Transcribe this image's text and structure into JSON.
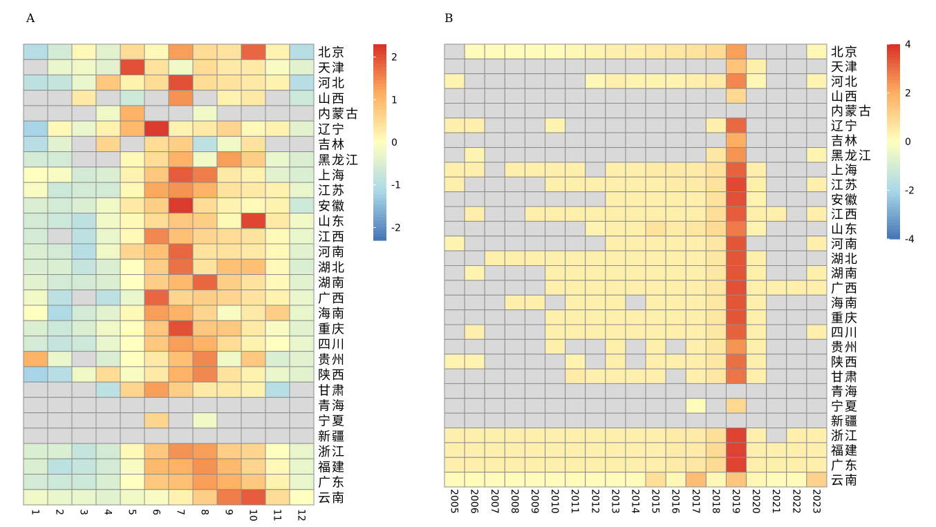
{
  "colors": {
    "na": "#d9d9d9",
    "scale_low": "#4575b4",
    "scale_mid": "#ffffbf",
    "scale_high": "#d73027",
    "grid": "#8c8c8c"
  },
  "chart_data": [
    {
      "type": "heatmap",
      "panel_label": "A",
      "title": "",
      "xlabel": "",
      "ylabel": "",
      "columns": [
        "1",
        "2",
        "3",
        "4",
        "5",
        "6",
        "7",
        "8",
        "9",
        "10",
        "11",
        "12"
      ],
      "rows": [
        "北京",
        "天津",
        "河北",
        "山西",
        "内蒙古",
        "辽宁",
        "吉林",
        "黑龙江",
        "上海",
        "江苏",
        "安徽",
        "山东",
        "江西",
        "河南",
        "湖北",
        "湖南",
        "广西",
        "海南",
        "重庆",
        "四川",
        "贵州",
        "陕西",
        "甘肃",
        "青海",
        "宁夏",
        "新疆",
        "浙江",
        "福建",
        "广东",
        "云南"
      ],
      "legend": {
        "min": -2.3,
        "max": 2.3,
        "ticks": [
          2,
          1,
          0,
          -1,
          -2
        ],
        "tick_labels": [
          "2",
          "1",
          "0",
          "-1",
          "-2"
        ],
        "position": "right"
      },
      "values": [
        [
          -1.0,
          -0.6,
          0.1,
          -0.4,
          0.5,
          0.1,
          1.3,
          0.5,
          0.4,
          1.8,
          0.2,
          -1.0
        ],
        [
          null,
          -0.3,
          -0.2,
          -0.4,
          2.0,
          0.4,
          -0.2,
          0.5,
          0.3,
          0.3,
          -0.1,
          -0.4
        ],
        [
          -0.9,
          -0.8,
          -0.3,
          0.8,
          0.2,
          0.5,
          2.0,
          0.5,
          0.4,
          0.3,
          0.2,
          -1.0
        ],
        [
          null,
          null,
          0.3,
          null,
          -0.7,
          null,
          1.4,
          null,
          0.2,
          0.3,
          null,
          -0.7
        ],
        [
          null,
          null,
          null,
          -0.2,
          1.1,
          null,
          null,
          -0.2,
          null,
          null,
          null,
          null
        ],
        [
          -1.2,
          0.1,
          -0.3,
          0.2,
          1.0,
          2.2,
          0.2,
          0.3,
          0.6,
          0.1,
          0.2,
          -0.4
        ],
        [
          -1.0,
          -0.4,
          null,
          0.6,
          null,
          0.5,
          0.7,
          -0.9,
          -0.2,
          0.4,
          null,
          null
        ],
        [
          -0.6,
          -0.6,
          null,
          null,
          0.1,
          0.5,
          1.1,
          -0.2,
          1.3,
          0.7,
          -0.3,
          -0.5
        ],
        [
          0.0,
          -0.1,
          -0.6,
          -0.5,
          0.2,
          0.8,
          1.9,
          1.6,
          0.3,
          0.2,
          -0.4,
          -0.5
        ],
        [
          -0.1,
          -0.7,
          -0.6,
          -0.6,
          0.1,
          1.2,
          1.4,
          1.1,
          0.4,
          0.3,
          0.2,
          -0.3
        ],
        [
          -0.5,
          -0.6,
          -0.5,
          -0.2,
          0.3,
          0.7,
          2.2,
          0.5,
          0.2,
          0.1,
          0.2,
          -0.7
        ],
        [
          -0.6,
          -0.7,
          -0.9,
          -0.2,
          0.1,
          0.5,
          0.8,
          0.7,
          0.1,
          2.1,
          0.3,
          -0.2
        ],
        [
          -0.6,
          null,
          -0.9,
          -0.3,
          0.1,
          1.5,
          0.9,
          0.6,
          0.5,
          0.4,
          0.1,
          -0.3
        ],
        [
          -0.5,
          -0.6,
          -1.0,
          -0.2,
          0.6,
          0.9,
          1.8,
          0.4,
          0.4,
          0.3,
          0.1,
          -0.4
        ],
        [
          -0.5,
          -0.5,
          -0.8,
          -0.5,
          0.0,
          0.7,
          1.7,
          0.4,
          0.9,
          0.9,
          0.1,
          -0.5
        ],
        [
          -0.4,
          -0.6,
          -0.6,
          -0.5,
          0.0,
          0.7,
          1.0,
          1.8,
          0.7,
          0.4,
          0.1,
          -0.4
        ],
        [
          -0.2,
          -0.9,
          null,
          -0.9,
          -0.3,
          1.8,
          0.6,
          0.7,
          0.6,
          0.4,
          0.2,
          -0.3
        ],
        [
          0.0,
          -1.1,
          -0.6,
          -0.4,
          0.1,
          1.3,
          1.1,
          0.6,
          -0.1,
          0.3,
          0.7,
          -0.3
        ],
        [
          -0.5,
          -0.7,
          -0.5,
          -0.2,
          0.0,
          0.8,
          2.0,
          0.8,
          0.8,
          0.3,
          -0.1,
          -0.4
        ],
        [
          -0.6,
          -0.8,
          -0.7,
          -0.3,
          0.0,
          0.8,
          1.3,
          1.1,
          0.5,
          0.2,
          0.0,
          -0.3
        ],
        [
          1.1,
          -0.3,
          null,
          -0.5,
          0.0,
          0.3,
          0.9,
          1.5,
          -0.2,
          0.8,
          -0.5,
          -0.4
        ],
        [
          -1.2,
          -1.0,
          -0.2,
          0.5,
          -0.1,
          0.3,
          1.1,
          1.5,
          0.4,
          0.2,
          -0.3,
          -0.4
        ],
        [
          null,
          null,
          null,
          -0.9,
          0.6,
          1.3,
          0.7,
          0.3,
          0.3,
          0.2,
          -1.0,
          null
        ],
        [
          null,
          null,
          null,
          null,
          null,
          null,
          null,
          null,
          null,
          null,
          null,
          null
        ],
        [
          null,
          null,
          null,
          null,
          null,
          0.6,
          null,
          -0.2,
          null,
          null,
          null,
          null
        ],
        [
          null,
          null,
          null,
          null,
          null,
          null,
          null,
          null,
          null,
          null,
          null,
          null
        ],
        [
          -0.5,
          -0.5,
          -0.8,
          -0.6,
          0.1,
          0.8,
          1.4,
          1.3,
          0.7,
          0.6,
          0.0,
          -0.3
        ],
        [
          -0.5,
          -0.9,
          -0.8,
          -0.6,
          -0.1,
          1.0,
          1.1,
          1.4,
          1.0,
          0.6,
          0.1,
          -0.3
        ],
        [
          -0.6,
          -0.7,
          -0.7,
          -0.5,
          0.0,
          0.8,
          0.9,
          1.3,
          1.1,
          0.8,
          0.2,
          -0.3
        ],
        [
          -0.2,
          -0.3,
          -0.3,
          -0.4,
          -0.2,
          -0.1,
          0.2,
          0.7,
          1.6,
          1.9,
          0.5,
          0.0
        ]
      ]
    },
    {
      "type": "heatmap",
      "panel_label": "B",
      "title": "",
      "xlabel": "",
      "ylabel": "",
      "columns": [
        "2005",
        "2006",
        "2007",
        "2008",
        "2009",
        "2010",
        "2011",
        "2012",
        "2013",
        "2014",
        "2015",
        "2016",
        "2017",
        "2018",
        "2019",
        "2020",
        "2021",
        "2022",
        "2023"
      ],
      "rows": [
        "北京",
        "天津",
        "河北",
        "山西",
        "内蒙古",
        "辽宁",
        "吉林",
        "黑龙江",
        "上海",
        "江苏",
        "安徽",
        "江西",
        "山东",
        "河南",
        "湖北",
        "湖南",
        "广西",
        "海南",
        "重庆",
        "四川",
        "贵州",
        "陕西",
        "甘肃",
        "青海",
        "宁夏",
        "新疆",
        "浙江",
        "福建",
        "广东",
        "云南"
      ],
      "legend": {
        "min": -4,
        "max": 4,
        "ticks": [
          4,
          2,
          0,
          -2,
          -4
        ],
        "tick_labels": [
          "4",
          "2",
          "0",
          "-2",
          "-4"
        ],
        "position": "right"
      },
      "values": [
        [
          null,
          0.1,
          0.1,
          0.1,
          0.1,
          0.1,
          0.2,
          0.3,
          0.4,
          0.4,
          0.5,
          0.6,
          0.7,
          0.9,
          2.2,
          null,
          null,
          null,
          0.2
        ],
        [
          null,
          null,
          null,
          null,
          null,
          null,
          null,
          null,
          null,
          null,
          null,
          null,
          null,
          null,
          1.5,
          0.4,
          null,
          null,
          null
        ],
        [
          0.3,
          null,
          null,
          null,
          null,
          null,
          null,
          0.2,
          0.4,
          0.3,
          0.3,
          0.3,
          0.4,
          0.5,
          2.6,
          0.2,
          null,
          null,
          0.3
        ],
        [
          null,
          null,
          null,
          null,
          null,
          null,
          null,
          null,
          null,
          null,
          null,
          null,
          null,
          null,
          1.0,
          null,
          null,
          null,
          null
        ],
        [
          null,
          null,
          null,
          null,
          null,
          null,
          null,
          null,
          null,
          null,
          null,
          null,
          null,
          null,
          null,
          null,
          null,
          null,
          null
        ],
        [
          0.4,
          0.4,
          null,
          null,
          null,
          0.3,
          null,
          null,
          null,
          null,
          null,
          null,
          null,
          0.4,
          3.1,
          null,
          null,
          null,
          null
        ],
        [
          null,
          null,
          null,
          null,
          null,
          null,
          null,
          null,
          null,
          null,
          null,
          null,
          null,
          null,
          2.0,
          null,
          null,
          null,
          null
        ],
        [
          null,
          0.3,
          null,
          null,
          null,
          null,
          null,
          null,
          null,
          null,
          null,
          null,
          null,
          0.6,
          2.4,
          null,
          null,
          null,
          0.3
        ],
        [
          0.4,
          0.4,
          null,
          0.4,
          0.4,
          0.4,
          0.4,
          null,
          0.4,
          0.4,
          0.5,
          0.5,
          0.5,
          0.7,
          3.2,
          0.4,
          null,
          null,
          null
        ],
        [
          0.4,
          null,
          null,
          null,
          null,
          0.4,
          0.4,
          0.4,
          0.4,
          0.4,
          0.4,
          0.5,
          0.5,
          0.7,
          3.6,
          0.4,
          null,
          null,
          0.4
        ],
        [
          null,
          null,
          null,
          null,
          null,
          null,
          null,
          null,
          0.4,
          0.4,
          0.4,
          0.4,
          0.4,
          0.7,
          3.5,
          0.3,
          null,
          null,
          null
        ],
        [
          null,
          0.4,
          null,
          null,
          0.4,
          0.4,
          0.4,
          0.4,
          0.4,
          0.4,
          0.4,
          0.4,
          0.4,
          0.8,
          3.3,
          0.4,
          0.4,
          null,
          0.4
        ],
        [
          null,
          null,
          null,
          null,
          null,
          null,
          null,
          0.3,
          0.4,
          0.4,
          0.7,
          0.5,
          0.6,
          0.9,
          2.8,
          0.3,
          null,
          null,
          null
        ],
        [
          0.3,
          null,
          null,
          null,
          null,
          null,
          null,
          null,
          0.4,
          0.4,
          0.4,
          0.4,
          0.4,
          0.6,
          3.4,
          null,
          null,
          null,
          0.4
        ],
        [
          null,
          null,
          0.4,
          0.4,
          0.4,
          0.4,
          0.4,
          0.4,
          0.4,
          0.4,
          0.4,
          0.4,
          0.4,
          0.6,
          3.4,
          0.4,
          null,
          null,
          null
        ],
        [
          null,
          0.3,
          null,
          null,
          null,
          0.4,
          0.4,
          0.4,
          0.4,
          0.4,
          0.4,
          0.4,
          0.4,
          0.6,
          3.4,
          0.4,
          null,
          null,
          0.4
        ],
        [
          null,
          null,
          null,
          null,
          null,
          0.4,
          0.4,
          0.4,
          0.4,
          0.4,
          0.4,
          0.4,
          0.4,
          0.6,
          3.5,
          0.4,
          0.4,
          0.4,
          0.4
        ],
        [
          null,
          null,
          null,
          0.4,
          0.4,
          null,
          0.4,
          0.4,
          0.4,
          null,
          0.4,
          0.4,
          0.4,
          0.6,
          3.4,
          0.4,
          null,
          null,
          null
        ],
        [
          null,
          null,
          null,
          null,
          null,
          0.4,
          0.4,
          0.4,
          0.4,
          0.4,
          0.4,
          0.4,
          0.4,
          0.6,
          3.4,
          0.4,
          null,
          null,
          null
        ],
        [
          null,
          0.4,
          null,
          null,
          null,
          0.4,
          0.4,
          0.4,
          0.4,
          0.4,
          0.4,
          0.4,
          0.4,
          0.6,
          3.2,
          0.4,
          null,
          null,
          0.4
        ],
        [
          null,
          null,
          null,
          null,
          null,
          0.4,
          null,
          null,
          0.4,
          null,
          0.4,
          null,
          0.4,
          0.6,
          2.4,
          0.4,
          null,
          null,
          null
        ],
        [
          0.3,
          0.3,
          null,
          null,
          null,
          null,
          0.3,
          null,
          0.4,
          null,
          0.4,
          0.4,
          0.4,
          0.6,
          3.0,
          0.4,
          null,
          null,
          null
        ],
        [
          null,
          null,
          null,
          null,
          null,
          null,
          0.5,
          0.4,
          0.4,
          0.4,
          0.4,
          null,
          0.4,
          0.6,
          2.9,
          0.4,
          null,
          null,
          null
        ],
        [
          null,
          null,
          null,
          null,
          null,
          null,
          null,
          null,
          null,
          null,
          null,
          null,
          null,
          null,
          null,
          null,
          null,
          null,
          null
        ],
        [
          null,
          null,
          null,
          null,
          null,
          null,
          null,
          null,
          null,
          null,
          null,
          null,
          0.1,
          null,
          1.0,
          null,
          null,
          null,
          null
        ],
        [
          null,
          null,
          null,
          null,
          null,
          null,
          null,
          null,
          null,
          null,
          null,
          null,
          null,
          null,
          null,
          null,
          null,
          null,
          null
        ],
        [
          0.4,
          0.4,
          0.4,
          0.4,
          0.4,
          0.4,
          0.4,
          0.4,
          0.4,
          0.4,
          0.4,
          0.5,
          0.5,
          0.8,
          3.7,
          0.4,
          null,
          0.4,
          0.4
        ],
        [
          0.4,
          0.4,
          0.4,
          0.4,
          0.4,
          0.4,
          0.4,
          0.4,
          0.4,
          0.4,
          0.4,
          0.5,
          0.5,
          0.9,
          3.7,
          0.4,
          0.4,
          0.4,
          0.4
        ],
        [
          0.4,
          0.4,
          0.4,
          0.4,
          0.4,
          0.4,
          0.4,
          0.4,
          0.4,
          0.4,
          0.4,
          0.5,
          0.6,
          0.9,
          3.7,
          0.4,
          0.4,
          0.4,
          0.4
        ],
        [
          0.1,
          0.1,
          0.1,
          0.1,
          0.1,
          0.1,
          0.1,
          0.1,
          0.1,
          0.1,
          0.8,
          0.2,
          1.6,
          0.2,
          1.4,
          0.2,
          0.1,
          0.1,
          1.1
        ]
      ]
    }
  ]
}
